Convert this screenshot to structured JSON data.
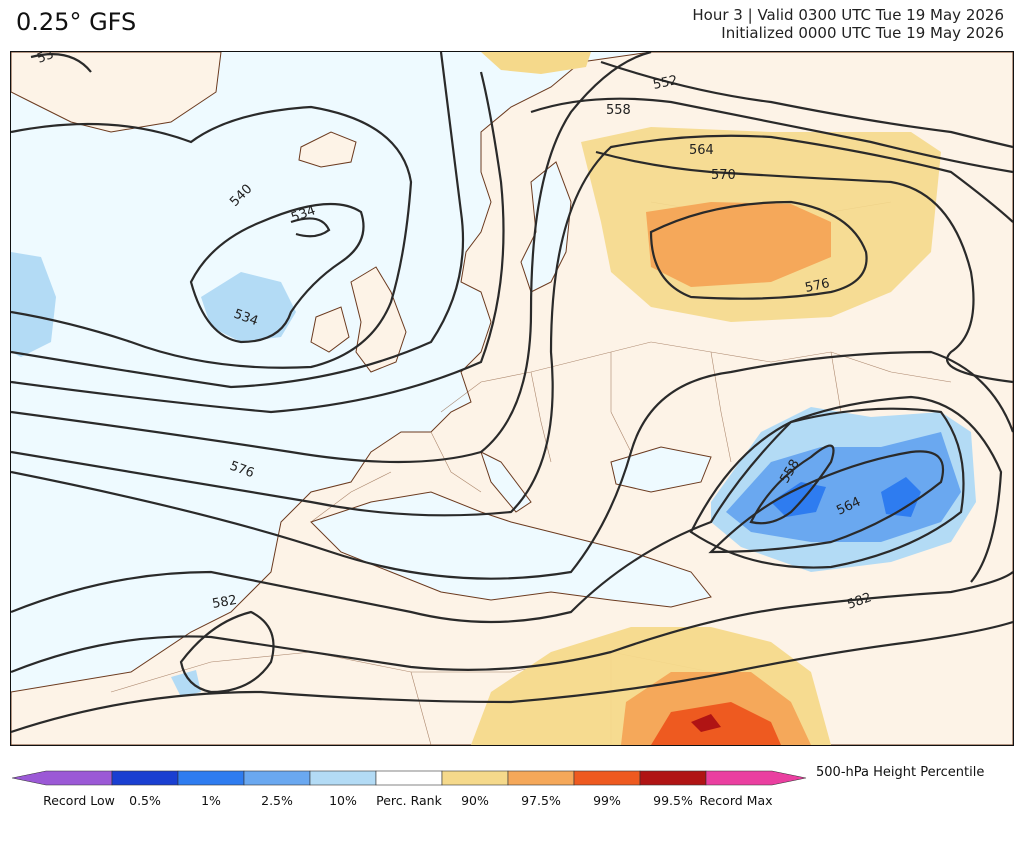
{
  "header": {
    "model": "0.25° GFS",
    "valid_line": "Hour 3 | Valid 0300 UTC Tue 19 May 2026",
    "init_line": "Initialized 0000 UTC Tue 19 May 2026"
  },
  "map": {
    "contour_labels": [
      "534",
      "534",
      "540",
      "552",
      "558",
      "564",
      "570",
      "576",
      "576",
      "582",
      "582",
      "558",
      "564",
      "53"
    ],
    "land_color": "#fdf3e7",
    "ocean_color": "#eefaff",
    "contour_color": "#2a2a2a",
    "border_color": "#6b3a1f"
  },
  "legend": {
    "title": "500-hPa Height Percentile",
    "colors": [
      "#9b59d6",
      "#1a3fd1",
      "#2e7cf0",
      "#6aa8f0",
      "#b3dbf5",
      "#ffffff",
      "#f5d98b",
      "#f5a85a",
      "#ee5a20",
      "#b01414",
      "#ea3fa0"
    ],
    "labels": [
      "Record Low",
      "0.5%",
      "1%",
      "2.5%",
      "10%",
      "Perc. Rank",
      "90%",
      "97.5%",
      "99%",
      "99.5%",
      "Record Max"
    ]
  }
}
